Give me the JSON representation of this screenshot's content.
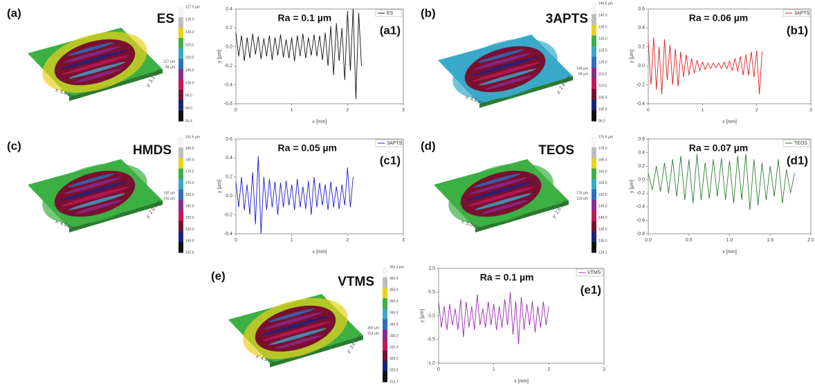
{
  "surfaces": [
    {
      "label": "(a)",
      "name": "ES",
      "colorbar": [
        "127.0 µm",
        "125.0",
        "120.0",
        "115.0",
        "110.0",
        "105.0",
        "100.0",
        "95.0",
        "90.0",
        "84.4"
      ],
      "x_dim": "x: 5.8 mm",
      "y_dim": "y: 3.1 mm",
      "z_max": "127 µm",
      "z_min": "84 µm"
    },
    {
      "label": "(b)",
      "name": "3APTS",
      "colorbar": [
        "146.5 µm",
        "140.0",
        "135.0",
        "130.0",
        "125.0",
        "120.0",
        "115.0",
        "110.0",
        "105.0",
        "100.0",
        "96.0"
      ],
      "x_dim": "x: 4.5 mm",
      "y_dim": "y: 2.9 mm",
      "z_max": "146 µm",
      "z_min": "96 µm"
    },
    {
      "label": "(c)",
      "name": "HMDS",
      "colorbar": [
        "191.6 µm",
        "185.0",
        "180.0",
        "175.0",
        "170.0",
        "165.0",
        "160.0",
        "155.0",
        "150.0",
        "145.0",
        "142.8"
      ],
      "x_dim": "x: 4.5 mm",
      "y_dim": "y: 2.0 mm",
      "z_max": "192 µm",
      "z_min": "143 µm"
    },
    {
      "label": "(d)",
      "name": "TEOS",
      "colorbar": [
        "175.6 µm",
        "170.0",
        "165.0",
        "160.0",
        "155.0",
        "150.0",
        "145.0",
        "140.0",
        "135.0",
        "130.0",
        "124.1"
      ],
      "x_dim": "x: 5.0 mm",
      "y_dim": "y: 2.6 mm",
      "z_max": "176 µm",
      "z_min": "124 µm"
    },
    {
      "label": "(e)",
      "name": "VTMS",
      "colorbar": [
        "363.3 µm",
        "360.0",
        "355.0",
        "350.0",
        "345.0",
        "340.0",
        "335.0",
        "330.0",
        "325.0",
        "320.0",
        "313.7"
      ],
      "x_dim": "x: 4.0 mm",
      "y_dim": "y: 3.0 mm",
      "z_max": "363 µm",
      "z_min": "314 µm"
    }
  ],
  "chart_data": [
    {
      "type": "line",
      "panel": "(a1)",
      "annotation": "Ra = 0.1 µm",
      "xlabel": "x [mm]",
      "ylabel": "y [µm]",
      "legend": "upper right",
      "x": [
        0,
        0.05,
        0.1,
        0.15,
        0.2,
        0.25,
        0.3,
        0.35,
        0.4,
        0.45,
        0.5,
        0.55,
        0.6,
        0.65,
        0.7,
        0.75,
        0.8,
        0.85,
        0.9,
        0.95,
        1,
        1.05,
        1.1,
        1.15,
        1.2,
        1.25,
        1.3,
        1.35,
        1.4,
        1.45,
        1.5,
        1.55,
        1.6,
        1.65,
        1.7,
        1.75,
        1.8,
        1.85,
        1.9,
        1.95,
        2,
        2.05,
        2.1,
        2.15,
        2.2,
        2.25
      ],
      "series": [
        {
          "name": "ES",
          "color": "#111111",
          "values": [
            0.15,
            -0.1,
            0.12,
            -0.15,
            0.1,
            -0.12,
            0.14,
            -0.08,
            0.11,
            -0.13,
            0.09,
            -0.1,
            0.12,
            -0.14,
            0.1,
            -0.09,
            0.13,
            -0.11,
            0.08,
            -0.12,
            0.1,
            -0.15,
            0.12,
            -0.1,
            0.14,
            -0.12,
            0.1,
            -0.09,
            0.13,
            -0.1,
            0.12,
            -0.14,
            0.15,
            -0.2,
            0.22,
            -0.3,
            0.25,
            -0.15,
            0.2,
            -0.35,
            0.38,
            -0.25,
            0.4,
            -0.55,
            0.36,
            -0.2
          ]
        }
      ],
      "xlim": [
        0,
        3
      ],
      "xticks": [
        0,
        1,
        2,
        3
      ],
      "ylim": [
        -0.6,
        0.4
      ],
      "yticks": [
        -0.6,
        -0.4,
        -0.2,
        {
          "value": 0,
          "label": "0.0"
        },
        0.2,
        0.4
      ]
    },
    {
      "type": "line",
      "panel": "(b1)",
      "annotation": "Ra = 0.06 µm",
      "xlabel": "x [mm]",
      "ylabel": "y [µm]",
      "legend": "upper right",
      "x": [
        0,
        0.05,
        0.1,
        0.15,
        0.2,
        0.25,
        0.3,
        0.35,
        0.4,
        0.45,
        0.5,
        0.55,
        0.6,
        0.65,
        0.7,
        0.75,
        0.8,
        0.85,
        0.9,
        0.95,
        1,
        1.05,
        1.1,
        1.15,
        1.2,
        1.25,
        1.3,
        1.35,
        1.4,
        1.45,
        1.5,
        1.55,
        1.6,
        1.65,
        1.7,
        1.75,
        1.8,
        1.85,
        1.9,
        1.95,
        2,
        2.05,
        2.1
      ],
      "series": [
        {
          "name": "3APTS",
          "color": "#e02020",
          "values": [
            0.25,
            -0.2,
            0.3,
            -0.25,
            0.2,
            -0.3,
            0.28,
            -0.15,
            0.22,
            -0.2,
            0.18,
            -0.22,
            0.15,
            -0.12,
            0.12,
            -0.1,
            0.08,
            -0.08,
            0.06,
            -0.05,
            0.04,
            -0.04,
            0.03,
            -0.03,
            0.03,
            -0.02,
            0.03,
            -0.03,
            0.04,
            -0.03,
            0.05,
            -0.05,
            0.08,
            -0.06,
            0.1,
            -0.1,
            0.12,
            -0.1,
            0.15,
            -0.12,
            0.16,
            -0.3,
            0.15
          ]
        }
      ],
      "xlim": [
        0,
        3
      ],
      "xticks": [
        0,
        1,
        2,
        3
      ],
      "ylim": [
        -0.4,
        0.6
      ],
      "yticks": [
        -0.4,
        -0.2,
        {
          "value": 0,
          "label": "0.0"
        },
        0.2,
        0.4,
        0.6
      ]
    },
    {
      "type": "line",
      "panel": "(c1)",
      "annotation": "Ra = 0.05 µm",
      "xlabel": "x [mm]",
      "ylabel": "y [µm]",
      "legend": "upper right",
      "x": [
        0,
        0.05,
        0.1,
        0.15,
        0.2,
        0.25,
        0.3,
        0.35,
        0.4,
        0.45,
        0.5,
        0.55,
        0.6,
        0.65,
        0.7,
        0.75,
        0.8,
        0.85,
        0.9,
        0.95,
        1,
        1.05,
        1.1,
        1.15,
        1.2,
        1.25,
        1.3,
        1.35,
        1.4,
        1.45,
        1.5,
        1.55,
        1.6,
        1.65,
        1.7,
        1.75,
        1.8,
        1.85,
        1.9,
        1.95,
        2,
        2.05,
        2.1
      ],
      "series": [
        {
          "name": "3APTS",
          "color": "#1a1ad0",
          "values": [
            0.15,
            -0.12,
            0.2,
            -0.15,
            0.12,
            -0.2,
            0.25,
            -0.3,
            0.42,
            -0.4,
            0.2,
            -0.15,
            0.18,
            -0.12,
            0.15,
            -0.2,
            0.14,
            -0.12,
            0.16,
            -0.1,
            0.12,
            -0.15,
            0.18,
            -0.12,
            0.1,
            -0.14,
            0.16,
            -0.2,
            0.2,
            -0.12,
            0.14,
            -0.1,
            0.12,
            -0.15,
            0.15,
            -0.12,
            0.1,
            -0.14,
            0.12,
            -0.1,
            0.3,
            -0.12,
            0.2
          ]
        }
      ],
      "xlim": [
        0,
        3
      ],
      "xticks": [
        0,
        1,
        2,
        3
      ],
      "ylim": [
        -0.4,
        0.6
      ],
      "yticks": [
        -0.4,
        -0.2,
        {
          "value": 0,
          "label": "0.0"
        },
        0.2,
        0.4,
        0.6
      ]
    },
    {
      "type": "line",
      "panel": "(d1)",
      "annotation": "Ra = 0.07 µm",
      "xlabel": "x [mm]",
      "ylabel": "y [µm]",
      "legend": "upper right",
      "x": [
        0,
        0.05,
        0.1,
        0.15,
        0.2,
        0.25,
        0.3,
        0.35,
        0.4,
        0.45,
        0.5,
        0.55,
        0.6,
        0.65,
        0.7,
        0.75,
        0.8,
        0.85,
        0.9,
        0.95,
        1,
        1.05,
        1.1,
        1.15,
        1.2,
        1.25,
        1.3,
        1.35,
        1.4,
        1.45,
        1.5,
        1.55,
        1.6,
        1.65,
        1.7,
        1.75,
        1.8
      ],
      "series": [
        {
          "name": "TEOS",
          "color": "#2e7d32",
          "values": [
            0.1,
            -0.15,
            0.2,
            -0.18,
            0.25,
            -0.2,
            0.3,
            -0.25,
            0.35,
            -0.3,
            0.3,
            -0.35,
            0.38,
            -0.3,
            0.25,
            -0.28,
            0.3,
            -0.25,
            0.32,
            -0.3,
            0.28,
            -0.35,
            0.35,
            -0.3,
            0.38,
            -0.45,
            0.3,
            -0.38,
            0.25,
            -0.3,
            0.2,
            -0.25,
            0.3,
            -0.35,
            0.15,
            -0.2,
            0.1
          ]
        }
      ],
      "xlim": [
        0,
        2
      ],
      "xticks": [
        {
          "value": 0,
          "label": "0.0"
        },
        0.5,
        {
          "value": 1,
          "label": "1.0"
        },
        1.5,
        {
          "value": 2,
          "label": "2.0"
        }
      ],
      "ylim": [
        -0.8,
        0.6
      ],
      "yticks": [
        -0.8,
        -0.6,
        -0.4,
        -0.2,
        {
          "value": 0,
          "label": "0.0"
        },
        0.2,
        0.4,
        0.6
      ]
    },
    {
      "type": "line",
      "panel": "(e1)",
      "annotation": "Ra = 0.1 µm",
      "xlabel": "x [mm]",
      "ylabel": "y [µm]",
      "legend": "upper right",
      "x": [
        0,
        0.05,
        0.1,
        0.15,
        0.2,
        0.25,
        0.3,
        0.35,
        0.4,
        0.45,
        0.5,
        0.55,
        0.6,
        0.65,
        0.7,
        0.75,
        0.8,
        0.85,
        0.9,
        0.95,
        1,
        1.05,
        1.1,
        1.15,
        1.2,
        1.25,
        1.3,
        1.35,
        1.4,
        1.45,
        1.5,
        1.55,
        1.6,
        1.65,
        1.7,
        1.75,
        1.8,
        1.85,
        1.9,
        1.95,
        2
      ],
      "series": [
        {
          "name": "VTMS",
          "color": "#9c27b0",
          "values": [
            0.3,
            -0.25,
            0.2,
            -0.3,
            0.25,
            -0.2,
            0.15,
            -0.3,
            0.35,
            -0.45,
            0.3,
            -0.25,
            0.2,
            -0.3,
            0.45,
            -0.2,
            0.15,
            -0.25,
            0.3,
            -0.2,
            0.25,
            -0.3,
            0.2,
            -0.25,
            0.35,
            -0.2,
            0.5,
            -0.4,
            0.3,
            -0.6,
            0.4,
            -0.3,
            0.25,
            -0.2,
            0.3,
            -0.35,
            0.2,
            -0.25,
            0.3,
            -0.2,
            0.2
          ]
        }
      ],
      "xlim": [
        0,
        3
      ],
      "xticks": [
        0,
        1,
        2,
        3
      ],
      "ylim": [
        -1,
        1
      ],
      "yticks": [
        {
          "value": -1,
          "label": "-1.0"
        },
        -0.5,
        {
          "value": 0,
          "label": "0.0"
        },
        0.5,
        {
          "value": 1,
          "label": "1.0"
        }
      ]
    }
  ]
}
